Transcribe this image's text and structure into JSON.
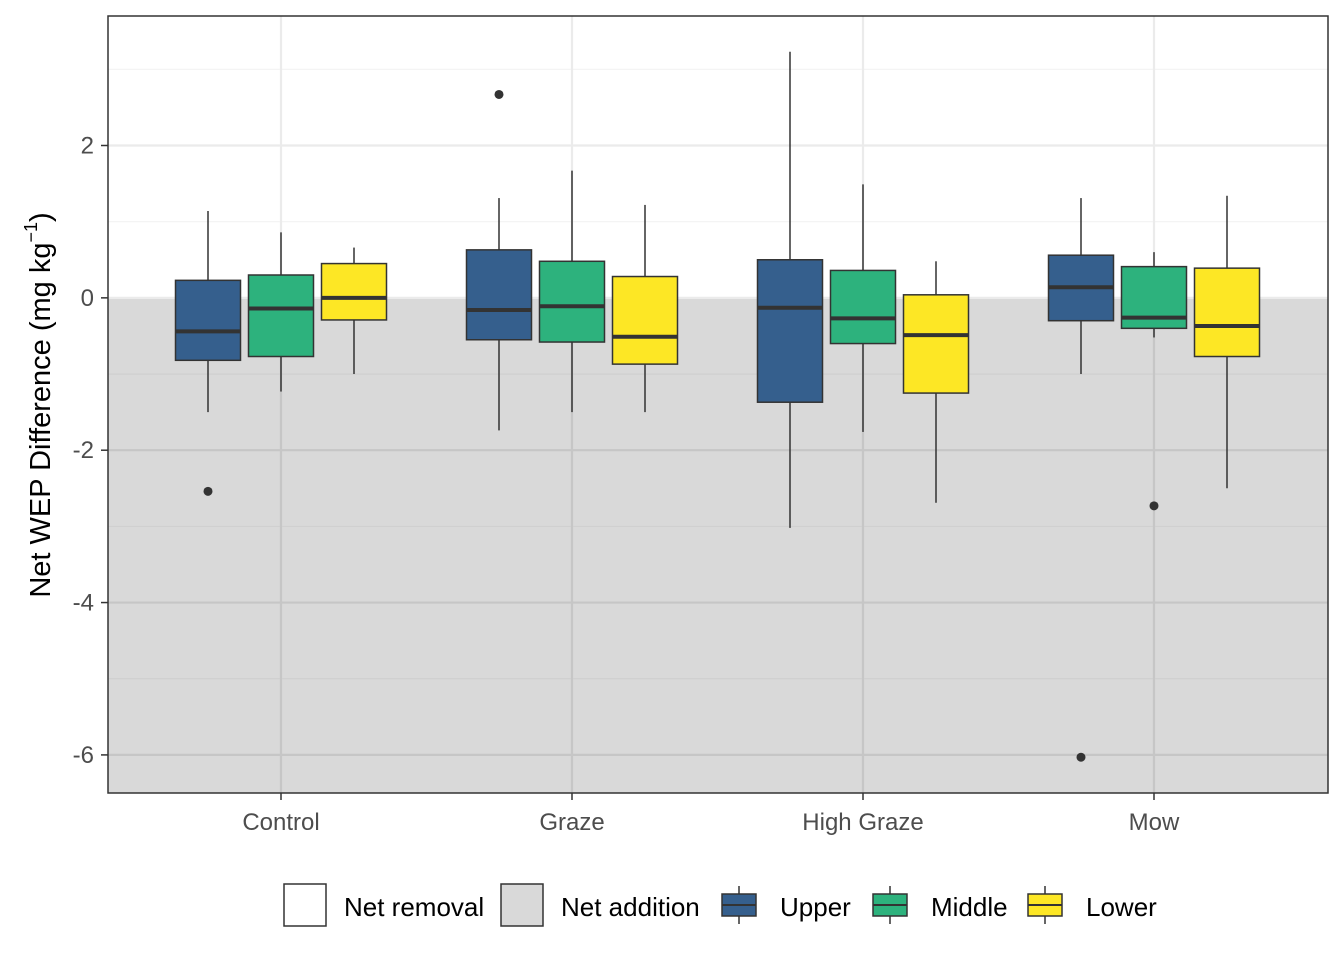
{
  "chart_data": {
    "type": "boxplot",
    "title": "",
    "xlabel": "",
    "ylabel_main": "Net WEP Difference (mg kg",
    "ylabel_sup": "−1",
    "ylabel_close": ")",
    "categories": [
      "Control",
      "Graze",
      "High Graze",
      "Mow"
    ],
    "ylim": [
      -6.5,
      3.7
    ],
    "yticks": [
      2,
      0,
      -2,
      -4,
      -6
    ],
    "ytick_labels": [
      "2",
      "0",
      "-2",
      "-4",
      "-6"
    ],
    "grid": true,
    "background_regions": [
      {
        "name": "Net removal",
        "from": 0,
        "to": 3.7,
        "color": "#ffffff"
      },
      {
        "name": "Net addition",
        "from": -6.5,
        "to": 0,
        "color": "#d9d9d9"
      }
    ],
    "legend_position": "bottom",
    "series": [
      {
        "name": "Upper",
        "color": "#355f8d",
        "boxes": [
          {
            "min": -1.5,
            "q1": -0.82,
            "median": -0.44,
            "q3": 0.23,
            "max": 1.14,
            "outliers": [
              -2.54
            ]
          },
          {
            "min": -1.74,
            "q1": -0.55,
            "median": -0.16,
            "q3": 0.63,
            "max": 1.31,
            "outliers": [
              2.67
            ]
          },
          {
            "min": -3.02,
            "q1": -1.37,
            "median": -0.13,
            "q3": 0.5,
            "max": 3.23,
            "outliers": []
          },
          {
            "min": -1.0,
            "q1": -0.3,
            "median": 0.14,
            "q3": 0.56,
            "max": 1.31,
            "outliers": [
              -6.03
            ]
          }
        ]
      },
      {
        "name": "Middle",
        "color": "#2db27d",
        "boxes": [
          {
            "min": -1.23,
            "q1": -0.77,
            "median": -0.14,
            "q3": 0.3,
            "max": 0.86,
            "outliers": []
          },
          {
            "min": -1.5,
            "q1": -0.58,
            "median": -0.11,
            "q3": 0.48,
            "max": 1.67,
            "outliers": []
          },
          {
            "min": -1.76,
            "q1": -0.6,
            "median": -0.27,
            "q3": 0.36,
            "max": 1.49,
            "outliers": []
          },
          {
            "min": -0.52,
            "q1": -0.4,
            "median": -0.26,
            "q3": 0.41,
            "max": 0.6,
            "outliers": [
              -2.73
            ]
          }
        ]
      },
      {
        "name": "Lower",
        "color": "#fde725",
        "boxes": [
          {
            "min": -1.0,
            "q1": -0.29,
            "median": 0.0,
            "q3": 0.45,
            "max": 0.66,
            "outliers": []
          },
          {
            "min": -1.5,
            "q1": -0.87,
            "median": -0.51,
            "q3": 0.28,
            "max": 1.22,
            "outliers": []
          },
          {
            "min": -2.69,
            "q1": -1.25,
            "median": -0.49,
            "q3": 0.04,
            "max": 0.48,
            "outliers": []
          },
          {
            "min": -2.5,
            "q1": -0.77,
            "median": -0.37,
            "q3": 0.39,
            "max": 1.34,
            "outliers": []
          }
        ]
      }
    ]
  },
  "legend": {
    "items": [
      {
        "label": "Net removal",
        "kind": "fill",
        "color": "#ffffff"
      },
      {
        "label": "Net addition",
        "kind": "fill",
        "color": "#d9d9d9"
      },
      {
        "label": "Upper",
        "kind": "box",
        "color": "#355f8d"
      },
      {
        "label": "Middle",
        "kind": "box",
        "color": "#2db27d"
      },
      {
        "label": "Lower",
        "kind": "box",
        "color": "#fde725"
      }
    ]
  }
}
